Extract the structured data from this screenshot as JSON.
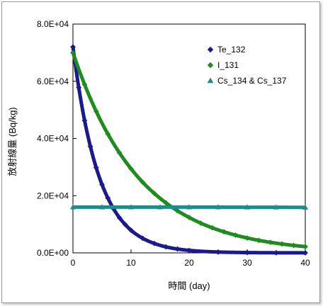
{
  "chart_data": {
    "type": "scatter",
    "xlabel": "時間 (day)",
    "ylabel": "放射線量 (Bq/kg)",
    "xlim": [
      0,
      40
    ],
    "ylim": [
      0,
      80000
    ],
    "x_ticks": [
      "0",
      "10",
      "20",
      "30",
      "40"
    ],
    "y_ticks": [
      "0.0E+00",
      "2.0E+04",
      "4.0E+04",
      "6.0E+04",
      "8.0E+04"
    ],
    "grid": false,
    "legend_position": "top-right",
    "series": [
      {
        "name": "Te_132",
        "color": "#1a1a8c",
        "marker": "diamond",
        "x": [
          0,
          1,
          2,
          3,
          4,
          5,
          6,
          7,
          8,
          9,
          10,
          12,
          14,
          16,
          18,
          20,
          25,
          30,
          35,
          40
        ],
        "y": [
          72000,
          57800,
          46300,
          37200,
          29800,
          23900,
          19200,
          15400,
          12300,
          9900,
          7900,
          5100,
          3300,
          2100,
          1350,
          870,
          300,
          110,
          40,
          15
        ]
      },
      {
        "name": "I_131",
        "color": "#1e8c1e",
        "marker": "diamond",
        "x": [
          0,
          2,
          4,
          6,
          8,
          10,
          12,
          14,
          16,
          18,
          20,
          22,
          24,
          26,
          28,
          30,
          32,
          34,
          36,
          38,
          40
        ],
        "y": [
          70000,
          58900,
          49500,
          41600,
          35000,
          29400,
          24700,
          20800,
          17500,
          14700,
          12400,
          10400,
          8750,
          7360,
          6190,
          5200,
          4380,
          3680,
          3100,
          2600,
          2190
        ]
      },
      {
        "name": "Cs_134 & Cs_137",
        "color": "#1e8c8c",
        "marker": "triangle",
        "x": [
          0,
          5,
          10,
          15,
          20,
          25,
          30,
          35,
          40
        ],
        "y": [
          16000,
          16000,
          16000,
          16000,
          16000,
          16000,
          15950,
          15950,
          15900
        ]
      }
    ]
  }
}
